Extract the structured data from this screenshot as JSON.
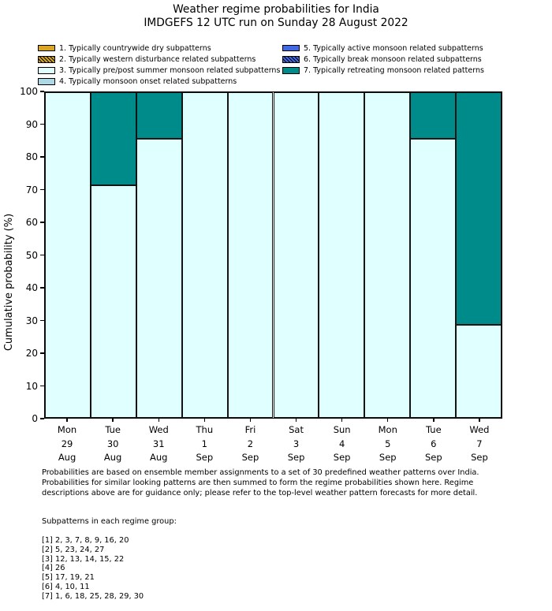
{
  "chart_data": {
    "type": "bar",
    "stacked": true,
    "title": "Weather regime probabilities for India",
    "subtitle": "IMDGEFS 12 UTC run on Sunday 28 August 2022",
    "xlabel": "",
    "ylabel": "Cumulative probability (%)",
    "ylim": [
      0,
      100
    ],
    "yticks": [
      0,
      10,
      20,
      30,
      40,
      50,
      60,
      70,
      80,
      90,
      100
    ],
    "grid": false,
    "legend_position": "top-two-columns",
    "bar_edge_color": "#141414",
    "categories": [
      "Mon 29 Aug",
      "Tue 30 Aug",
      "Wed 31 Aug",
      "Thu 1 Sep",
      "Fri 2 Sep",
      "Sat 3 Sep",
      "Sun 4 Sep",
      "Mon 5 Sep",
      "Tue 6 Sep",
      "Wed 7 Sep"
    ],
    "series": [
      {
        "name": "1. Typically countrywide dry subpatterns",
        "color": "#DAA520",
        "hatch": false,
        "values": [
          0,
          0,
          0,
          0,
          0,
          0,
          0,
          0,
          0,
          0
        ]
      },
      {
        "name": "2. Typically western disturbance related subpatterns",
        "color": "#DAA520",
        "hatch": true,
        "values": [
          0,
          0,
          0,
          0,
          0,
          0,
          0,
          0,
          0,
          0
        ]
      },
      {
        "name": "3. Typically pre/post summer monsoon related subpatterns",
        "color": "#E0FFFF",
        "hatch": false,
        "values": [
          100,
          71.4,
          85.7,
          100,
          100,
          100,
          100,
          100,
          85.7,
          28.6
        ]
      },
      {
        "name": "4. Typically monsoon onset related subpatterns",
        "color": "#ADD8E6",
        "hatch": false,
        "values": [
          0,
          0,
          0,
          0,
          0,
          0,
          0,
          0,
          0,
          0
        ]
      },
      {
        "name": "5. Typically active monsoon related subpatterns",
        "color": "#4169E1",
        "hatch": false,
        "values": [
          0,
          0,
          0,
          0,
          0,
          0,
          0,
          0,
          0,
          0
        ]
      },
      {
        "name": "6. Typically break monsoon related subpatterns",
        "color": "#4169E1",
        "hatch": true,
        "values": [
          0,
          0,
          0,
          0,
          0,
          0,
          0,
          0,
          0,
          0
        ]
      },
      {
        "name": "7. Typically retreating monsoon related patterns",
        "color": "#008B8B",
        "hatch": false,
        "values": [
          0,
          28.6,
          14.3,
          0,
          0,
          0,
          0,
          0,
          14.3,
          71.4
        ]
      }
    ]
  },
  "footnote": {
    "lines": [
      "Probabilities are based on ensemble member assignments to a set of 30 predefined weather patterns over India.",
      "Probabilities for similar looking patterns are then summed to form the regime probabilities shown here. Regime",
      "descriptions above are for guidance only; please refer to the top-level weather pattern forecasts for more detail."
    ]
  },
  "subpatterns": {
    "heading": "Subpatterns in each regime group:",
    "groups": [
      "[1] 2, 3, 7, 8, 9, 16, 20",
      "[2] 5, 23, 24, 27",
      "[3] 12, 13, 14, 15, 22",
      "[4] 26",
      "[5] 17, 19, 21",
      "[6] 4, 10, 11",
      "[7] 1, 6, 18, 25, 28, 29, 30"
    ]
  }
}
